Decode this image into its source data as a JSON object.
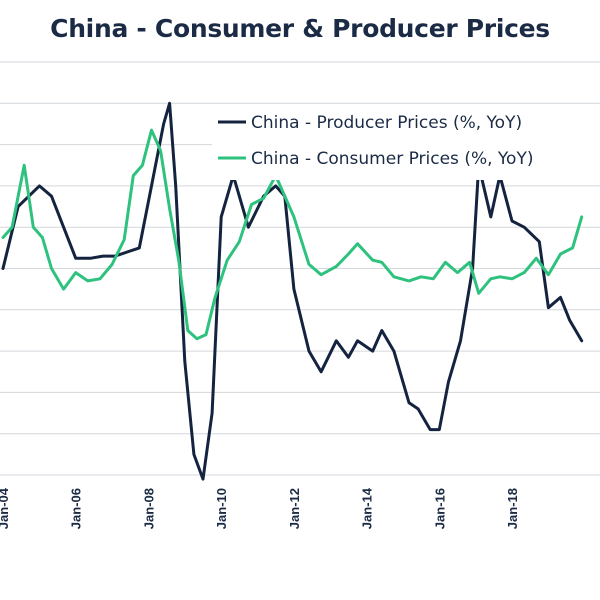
{
  "chart_data": {
    "type": "line",
    "title": "China - Consumer & Producer Prices",
    "xlabel": "",
    "ylabel": "",
    "x_tick_labels": [
      "Jan-04",
      "Jan-06",
      "Jan-08",
      "Jan-10",
      "Jan-12",
      "Jan-14",
      "Jan-16",
      "Jan-18"
    ],
    "x_range": [
      "2004-01",
      "2019-12"
    ],
    "y_range": [
      -8,
      12
    ],
    "grid": true,
    "legend_position": "top-right",
    "series": [
      {
        "name": "China - Producer Prices (%, YoY)",
        "color": "#14233f",
        "x": [
          "2004-01",
          "2004-06",
          "2005-01",
          "2005-05",
          "2005-09",
          "2006-01",
          "2006-06",
          "2006-10",
          "2007-02",
          "2007-06",
          "2007-10",
          "2008-02",
          "2008-06",
          "2008-08",
          "2008-10",
          "2009-01",
          "2009-04",
          "2009-07",
          "2009-10",
          "2010-01",
          "2010-05",
          "2010-10",
          "2011-03",
          "2011-07",
          "2011-10",
          "2012-01",
          "2012-06",
          "2012-10",
          "2013-03",
          "2013-07",
          "2013-10",
          "2014-03",
          "2014-06",
          "2014-10",
          "2015-03",
          "2015-06",
          "2015-10",
          "2016-01",
          "2016-04",
          "2016-08",
          "2016-12",
          "2017-02",
          "2017-06",
          "2017-09",
          "2018-01",
          "2018-05",
          "2018-10",
          "2019-01",
          "2019-05",
          "2019-08",
          "2019-12"
        ],
        "values": [
          2.0,
          5.0,
          6.0,
          5.5,
          4.0,
          2.5,
          2.5,
          2.6,
          2.6,
          2.8,
          3.0,
          6.0,
          9.0,
          10.0,
          6.0,
          -2.5,
          -7.0,
          -8.2,
          -5.0,
          4.5,
          6.5,
          4.0,
          5.5,
          6.0,
          5.5,
          1.0,
          -2.0,
          -3.0,
          -1.5,
          -2.3,
          -1.5,
          -2.0,
          -1.0,
          -2.0,
          -4.5,
          -4.8,
          -5.8,
          -5.8,
          -3.5,
          -1.5,
          2.0,
          7.0,
          4.5,
          6.5,
          4.3,
          4.0,
          3.3,
          0.1,
          0.6,
          -0.5,
          -1.5
        ]
      },
      {
        "name": "China - Consumer Prices (%, YoY)",
        "color": "#2ec27e",
        "x": [
          "2004-01",
          "2004-04",
          "2004-08",
          "2004-11",
          "2005-02",
          "2005-05",
          "2005-09",
          "2006-01",
          "2006-05",
          "2006-09",
          "2007-01",
          "2007-05",
          "2007-08",
          "2007-11",
          "2008-02",
          "2008-05",
          "2008-08",
          "2008-11",
          "2009-02",
          "2009-05",
          "2009-08",
          "2009-11",
          "2010-03",
          "2010-07",
          "2010-11",
          "2011-03",
          "2011-07",
          "2011-10",
          "2012-01",
          "2012-06",
          "2012-10",
          "2013-03",
          "2013-07",
          "2013-10",
          "2014-03",
          "2014-06",
          "2014-10",
          "2015-03",
          "2015-07",
          "2015-11",
          "2016-03",
          "2016-07",
          "2016-11",
          "2017-02",
          "2017-06",
          "2017-09",
          "2018-01",
          "2018-05",
          "2018-09",
          "2019-01",
          "2019-05",
          "2019-09",
          "2019-12"
        ],
        "values": [
          3.5,
          4.0,
          7.0,
          4.0,
          3.5,
          2.0,
          1.0,
          1.8,
          1.4,
          1.5,
          2.2,
          3.4,
          6.5,
          7.0,
          8.7,
          7.7,
          4.9,
          2.4,
          -1.0,
          -1.4,
          -1.2,
          0.6,
          2.4,
          3.3,
          5.1,
          5.4,
          6.5,
          5.5,
          4.5,
          2.2,
          1.7,
          2.1,
          2.7,
          3.2,
          2.4,
          2.3,
          1.6,
          1.4,
          1.6,
          1.5,
          2.3,
          1.8,
          2.3,
          0.8,
          1.5,
          1.6,
          1.5,
          1.8,
          2.5,
          1.7,
          2.7,
          3.0,
          4.5
        ]
      }
    ]
  }
}
